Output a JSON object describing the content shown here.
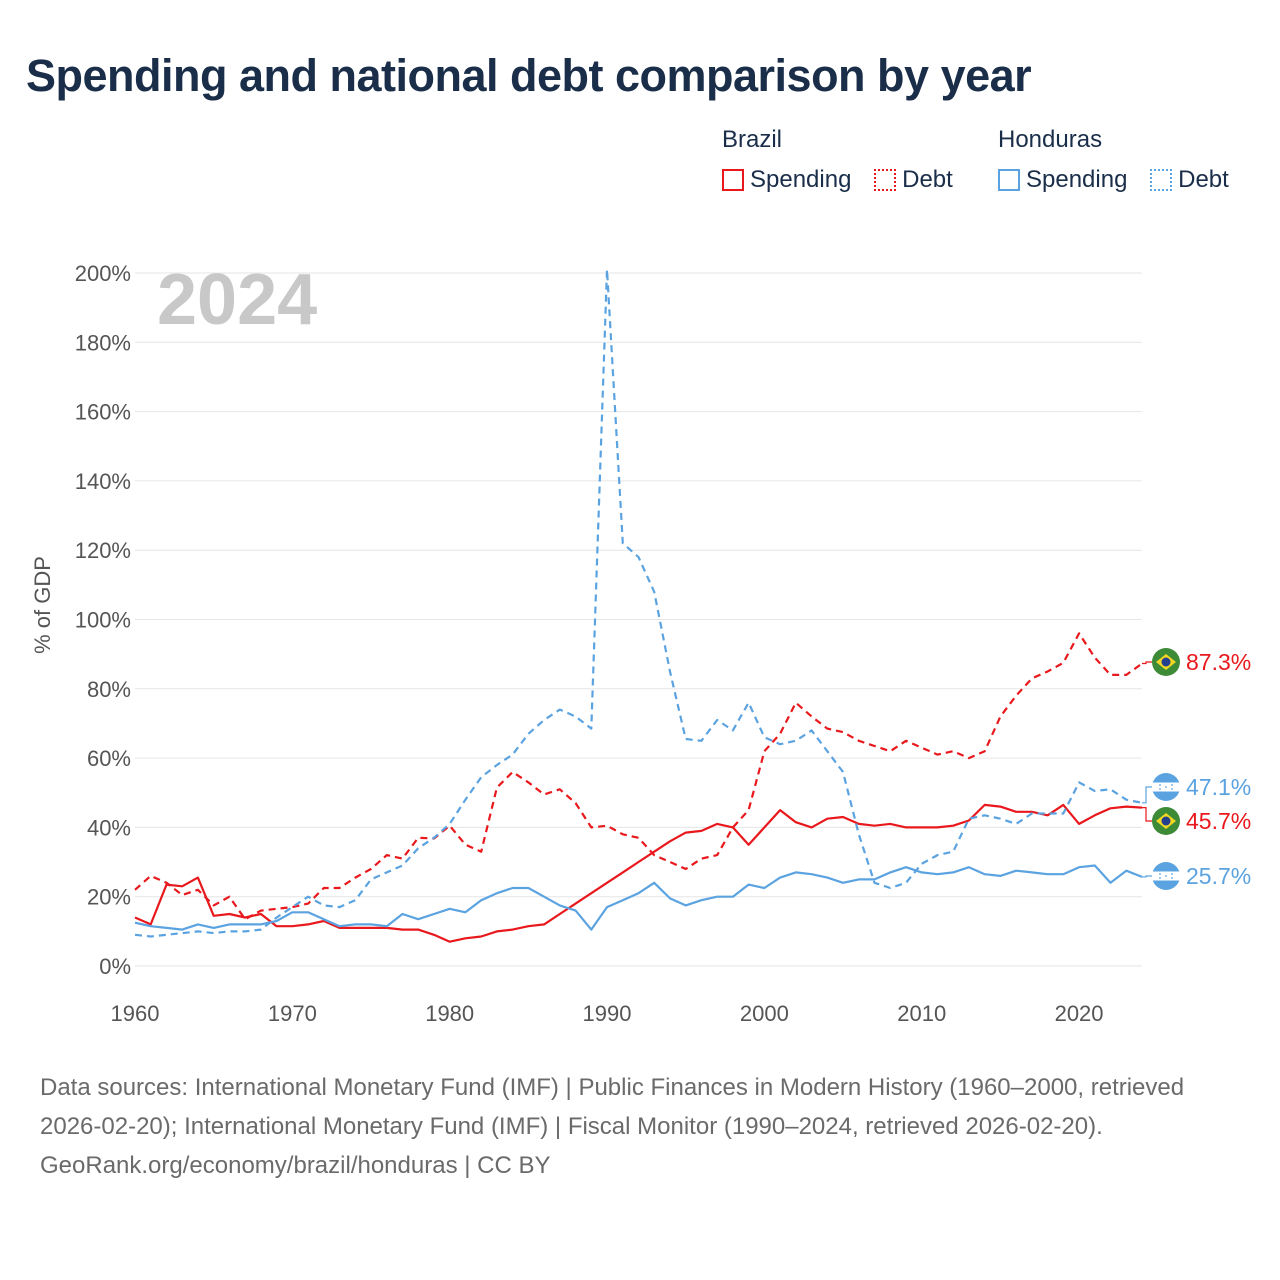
{
  "title": "Spending and national debt comparison by year",
  "legend": {
    "groups": [
      {
        "name": "Brazil",
        "color": "#e8181c",
        "items": [
          {
            "label": "Spending",
            "style": "solid"
          },
          {
            "label": "Debt",
            "style": "dotted"
          }
        ]
      },
      {
        "name": "Honduras",
        "color": "#5ba3e0",
        "items": [
          {
            "label": "Spending",
            "style": "solid"
          },
          {
            "label": "Debt",
            "style": "dotted"
          }
        ]
      }
    ]
  },
  "footer": {
    "sources": "Data sources: International Monetary Fund (IMF) | Public Finances in Modern History (1960–2000, retrieved 2026-02-20); International Monetary Fund (IMF) | Fiscal Monitor (1990–2024, retrieved 2026-02-20).",
    "credit": "GeoRank.org/economy/brazil/honduras | CC BY"
  },
  "chart_data": {
    "type": "line",
    "year_label": "2024",
    "ylabel": "% of GDP",
    "xlim": [
      1960,
      2024
    ],
    "ylim": [
      0,
      200
    ],
    "x_ticks": [
      1960,
      1970,
      1980,
      1990,
      2000,
      2010,
      2020
    ],
    "y_ticks": [
      0,
      20,
      40,
      60,
      80,
      100,
      120,
      140,
      160,
      180,
      200
    ],
    "y_tick_labels": [
      "0%",
      "20%",
      "40%",
      "60%",
      "80%",
      "100%",
      "120%",
      "140%",
      "160%",
      "180%",
      "200%"
    ],
    "grid": true,
    "series": [
      {
        "name": "Brazil Debt",
        "country": "Brazil",
        "metric": "Debt",
        "color": "#e8181c",
        "style": "dashed",
        "end_label": "87.3%",
        "end_value": 87.3,
        "x": [
          1960,
          1961,
          1962,
          1963,
          1964,
          1965,
          1966,
          1967,
          1968,
          1969,
          1970,
          1971,
          1972,
          1973,
          1974,
          1975,
          1976,
          1977,
          1978,
          1979,
          1980,
          1981,
          1982,
          1983,
          1984,
          1985,
          1986,
          1987,
          1988,
          1989,
          1990,
          1991,
          1992,
          1993,
          1994,
          1995,
          1996,
          1997,
          1998,
          1999,
          2000,
          2001,
          2002,
          2003,
          2004,
          2005,
          2006,
          2007,
          2008,
          2009,
          2010,
          2011,
          2012,
          2013,
          2014,
          2015,
          2016,
          2017,
          2018,
          2019,
          2020,
          2021,
          2022,
          2023,
          2024
        ],
        "values": [
          22,
          26,
          24,
          20.5,
          22,
          17.5,
          20,
          13.5,
          16,
          16.5,
          17,
          18,
          22.5,
          22.5,
          25.5,
          28,
          32,
          31,
          37,
          36.8,
          40.5,
          35,
          33,
          51.5,
          56,
          53,
          49.5,
          51,
          47,
          40,
          40.5,
          38,
          37,
          32,
          30,
          28,
          31,
          32,
          40,
          45,
          62,
          67,
          76,
          72,
          68.5,
          67.5,
          65,
          63.5,
          62,
          65,
          63,
          61,
          62,
          60,
          62,
          72,
          78,
          83,
          85,
          87.5,
          96,
          89,
          84,
          84,
          87.3
        ]
      },
      {
        "name": "Brazil Spending",
        "country": "Brazil",
        "metric": "Spending",
        "color": "#e8181c",
        "style": "solid",
        "end_label": "45.7%",
        "end_value": 45.7,
        "x": [
          1960,
          1961,
          1962,
          1963,
          1964,
          1965,
          1966,
          1967,
          1968,
          1969,
          1970,
          1971,
          1972,
          1973,
          1974,
          1975,
          1976,
          1977,
          1978,
          1979,
          1980,
          1981,
          1982,
          1983,
          1984,
          1985,
          1986,
          1987,
          1988,
          1989,
          1990,
          1991,
          1992,
          1993,
          1994,
          1995,
          1996,
          1997,
          1998,
          1999,
          2000,
          2001,
          2002,
          2003,
          2004,
          2005,
          2006,
          2007,
          2008,
          2009,
          2010,
          2011,
          2012,
          2013,
          2014,
          2015,
          2016,
          2017,
          2018,
          2019,
          2020,
          2021,
          2022,
          2023,
          2024
        ],
        "values": [
          14,
          12,
          23.5,
          23,
          25.5,
          14.5,
          15,
          14,
          15,
          11.5,
          11.5,
          12,
          13,
          11,
          11,
          11,
          11,
          10.5,
          10.5,
          9,
          7,
          8,
          8.5,
          10,
          10.5,
          11.5,
          12,
          15,
          18,
          21,
          24,
          27,
          30,
          33,
          36,
          38.5,
          39,
          41,
          40,
          35,
          40,
          45,
          41.5,
          40,
          42.5,
          43,
          41,
          40.5,
          41,
          40,
          40,
          40,
          40.5,
          42,
          46.5,
          46,
          44.5,
          44.5,
          43.5,
          46.5,
          41,
          43.5,
          45.5,
          46,
          45.7
        ]
      },
      {
        "name": "Honduras Debt",
        "country": "Honduras",
        "metric": "Debt",
        "color": "#5ba3e0",
        "style": "dashed",
        "end_label": "47.1%",
        "end_value": 47.1,
        "x": [
          1960,
          1961,
          1962,
          1963,
          1964,
          1965,
          1966,
          1967,
          1968,
          1969,
          1970,
          1971,
          1972,
          1973,
          1974,
          1975,
          1976,
          1977,
          1978,
          1979,
          1980,
          1981,
          1982,
          1983,
          1984,
          1985,
          1986,
          1987,
          1988,
          1989,
          1990,
          1991,
          1992,
          1993,
          1994,
          1995,
          1996,
          1997,
          1998,
          1999,
          2000,
          2001,
          2002,
          2003,
          2004,
          2005,
          2006,
          2007,
          2008,
          2009,
          2010,
          2011,
          2012,
          2013,
          2014,
          2015,
          2016,
          2017,
          2018,
          2019,
          2020,
          2021,
          2022,
          2023,
          2024
        ],
        "values": [
          9,
          8.5,
          9,
          9.5,
          10,
          9.5,
          10,
          10,
          10.5,
          14,
          17,
          20,
          17.5,
          17,
          19,
          25,
          27,
          29,
          34,
          37,
          41,
          48,
          54.5,
          58,
          61,
          67,
          71,
          74,
          72,
          68.5,
          201,
          122,
          118,
          108,
          85,
          65.5,
          65,
          71,
          68,
          76,
          66,
          64,
          65,
          68,
          62,
          56,
          38,
          24,
          22.5,
          24,
          29.5,
          32,
          33,
          42.5,
          43.5,
          42.5,
          41,
          44,
          44,
          44,
          53,
          50.5,
          51,
          48,
          47.1
        ]
      },
      {
        "name": "Honduras Spending",
        "country": "Honduras",
        "metric": "Spending",
        "color": "#5ba3e0",
        "style": "solid",
        "end_label": "25.7%",
        "end_value": 25.7,
        "x": [
          1960,
          1961,
          1962,
          1963,
          1964,
          1965,
          1966,
          1967,
          1968,
          1969,
          1970,
          1971,
          1972,
          1973,
          1974,
          1975,
          1976,
          1977,
          1978,
          1979,
          1980,
          1981,
          1982,
          1983,
          1984,
          1985,
          1986,
          1987,
          1988,
          1989,
          1990,
          1991,
          1992,
          1993,
          1994,
          1995,
          1996,
          1997,
          1998,
          1999,
          2000,
          2001,
          2002,
          2003,
          2004,
          2005,
          2006,
          2007,
          2008,
          2009,
          2010,
          2011,
          2012,
          2013,
          2014,
          2015,
          2016,
          2017,
          2018,
          2019,
          2020,
          2021,
          2022,
          2023,
          2024
        ],
        "values": [
          12.5,
          11.5,
          11,
          10.5,
          12,
          11,
          12,
          12,
          12,
          13,
          15.5,
          15.5,
          13.5,
          11.5,
          12,
          12,
          11.5,
          15,
          13.5,
          15,
          16.5,
          15.5,
          19,
          21,
          22.5,
          22.5,
          20,
          17.5,
          16,
          10.5,
          17,
          19,
          21,
          24,
          19.5,
          17.5,
          19,
          20,
          20,
          23.5,
          22.5,
          25.5,
          27,
          26.5,
          25.5,
          24,
          25,
          25,
          27,
          28.5,
          27,
          26.5,
          27,
          28.5,
          26.5,
          26,
          27.5,
          27,
          26.5,
          26.5,
          28.5,
          29,
          24,
          27.5,
          25.7
        ]
      }
    ]
  }
}
